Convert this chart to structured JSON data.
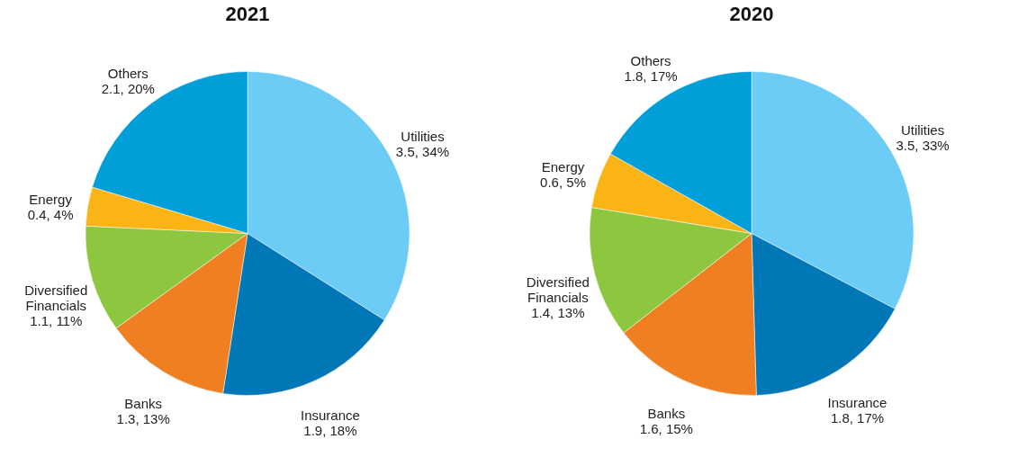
{
  "chart_data": [
    {
      "type": "pie",
      "title": "2021",
      "categories": [
        "Utilities",
        "Insurance",
        "Banks",
        "Diversified Financials",
        "Energy",
        "Others"
      ],
      "values": [
        3.5,
        1.9,
        1.3,
        1.1,
        0.4,
        2.1
      ],
      "value_labels": [
        "3.5, 34%",
        "1.9, 18%",
        "1.3, 13%",
        "1.1, 11%",
        "0.4, 4%",
        "2.1, 20%"
      ],
      "colors": [
        "#6dccf5",
        "#0077b6",
        "#f07f22",
        "#8dc63f",
        "#fbb416",
        "#009fda"
      ],
      "legend": false
    },
    {
      "type": "pie",
      "title": "2020",
      "categories": [
        "Utilities",
        "Insurance",
        "Banks",
        "Diversified Financials",
        "Energy",
        "Others"
      ],
      "values": [
        3.5,
        1.8,
        1.6,
        1.4,
        0.6,
        1.8
      ],
      "value_labels": [
        "3.5, 33%",
        "1.8, 17%",
        "1.6, 15%",
        "1.4, 13%",
        "0.6, 5%",
        "1.8, 17%"
      ],
      "colors": [
        "#6dccf5",
        "#0077b6",
        "#f07f22",
        "#8dc63f",
        "#fbb416",
        "#009fda"
      ],
      "legend": false
    }
  ]
}
